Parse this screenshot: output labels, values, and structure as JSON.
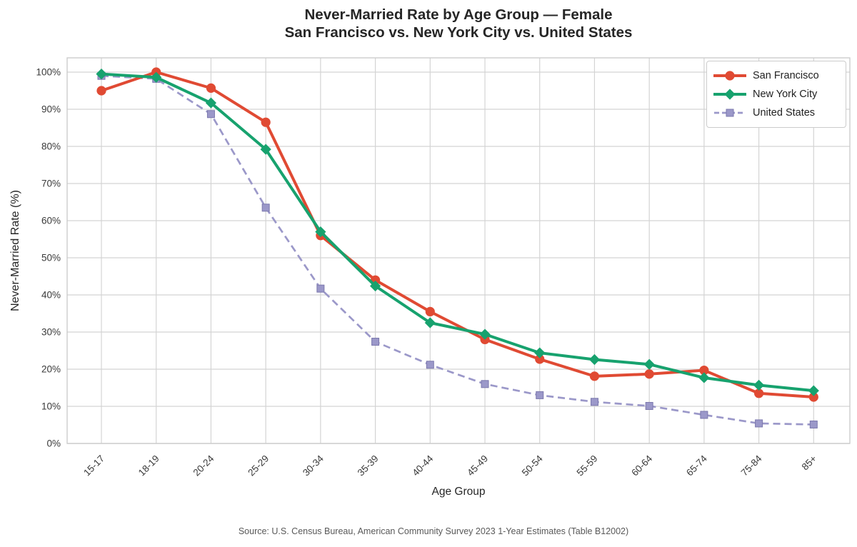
{
  "source_note": "Source: U.S. Census Bureau, American Community Survey 2023 1-Year Estimates (Table B12002)",
  "chart_data": {
    "type": "line",
    "title": "Never-Married Rate by Age Group — Female",
    "subtitle": "San Francisco vs. New York City vs. United States",
    "xlabel": "Age Group",
    "ylabel": "Never-Married Rate (%)",
    "ylim": [
      0,
      100
    ],
    "y_tick_step": 10,
    "y_tick_suffix": "%",
    "grid": true,
    "legend_position": "upper-right",
    "categories": [
      "15-17",
      "18-19",
      "20-24",
      "25-29",
      "30-34",
      "35-39",
      "40-44",
      "45-49",
      "50-54",
      "55-59",
      "60-64",
      "65-74",
      "75-84",
      "85+"
    ],
    "series": [
      {
        "name": "San Francisco",
        "color": "#e04a33",
        "marker": "circle",
        "line_style": "solid",
        "line_width": 4,
        "values": [
          95.0,
          100.0,
          95.7,
          86.5,
          56.0,
          44.0,
          35.5,
          28.0,
          22.7,
          18.1,
          18.7,
          19.7,
          13.5,
          12.5
        ]
      },
      {
        "name": "New York City",
        "color": "#17a26e",
        "marker": "diamond",
        "line_style": "solid",
        "line_width": 4,
        "values": [
          99.5,
          98.6,
          91.7,
          79.2,
          57.0,
          42.4,
          32.5,
          29.4,
          24.4,
          22.6,
          21.3,
          17.7,
          15.7,
          14.2
        ]
      },
      {
        "name": "United States",
        "color": "#9b98c9",
        "marker": "square",
        "line_style": "dashed",
        "line_width": 2.7,
        "values": [
          99.0,
          98.2,
          88.7,
          63.5,
          41.7,
          27.4,
          21.2,
          16.0,
          13.0,
          11.2,
          10.1,
          7.7,
          5.4,
          5.1
        ]
      }
    ]
  }
}
